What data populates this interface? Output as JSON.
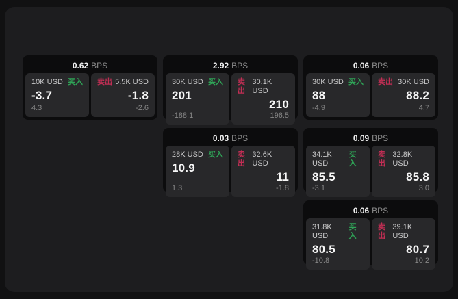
{
  "labels": {
    "bps": "BPS",
    "buy": "买入",
    "sell": "卖出"
  },
  "colors": {
    "background": "#111112",
    "panel": "#1d1d1f",
    "card": "#0c0c0d",
    "tile": "#28282a",
    "buy": "#2fa457",
    "sell": "#c22e54"
  },
  "cards": [
    {
      "bps": "0.62",
      "buy": {
        "amount": "10K USD",
        "main": "-3.7",
        "sub": "4.3"
      },
      "sell": {
        "amount": "5.5K USD",
        "main": "-1.8",
        "sub": "-2.6"
      }
    },
    {
      "bps": "2.92",
      "buy": {
        "amount": "30K USD",
        "main": "201",
        "sub": "-188.1"
      },
      "sell": {
        "amount": "30.1K USD",
        "main": "210",
        "sub": "196.5"
      }
    },
    {
      "bps": "0.06",
      "buy": {
        "amount": "30K USD",
        "main": "88",
        "sub": "-4.9"
      },
      "sell": {
        "amount": "30K USD",
        "main": "88.2",
        "sub": "4.7"
      }
    },
    {
      "bps": "0.03",
      "buy": {
        "amount": "28K USD",
        "main": "10.9",
        "sub": "1.3"
      },
      "sell": {
        "amount": "32.6K USD",
        "main": "11",
        "sub": "-1.8"
      }
    },
    {
      "bps": "0.09",
      "buy": {
        "amount": "34.1K USD",
        "main": "85.5",
        "sub": "-3.1"
      },
      "sell": {
        "amount": "32.8K USD",
        "main": "85.8",
        "sub": "3.0"
      }
    },
    {
      "bps": "0.06",
      "buy": {
        "amount": "31.8K USD",
        "main": "80.5",
        "sub": "-10.8"
      },
      "sell": {
        "amount": "39.1K USD",
        "main": "80.7",
        "sub": "10.2"
      }
    }
  ]
}
